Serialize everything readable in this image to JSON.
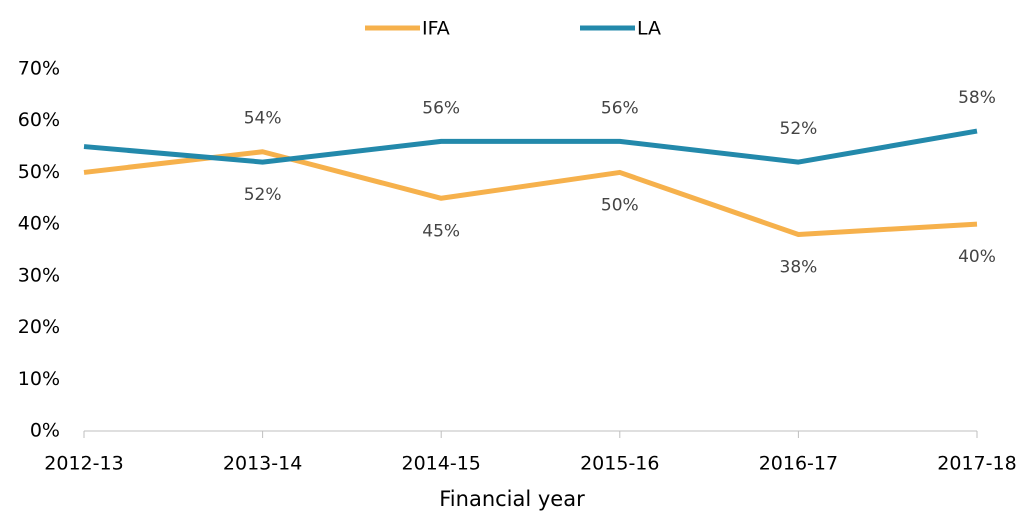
{
  "chart_data": {
    "type": "line",
    "x_label": "Financial year",
    "categories": [
      "2012-13",
      "2013-14",
      "2014-15",
      "2015-16",
      "2016-17",
      "2017-18"
    ],
    "series": [
      {
        "name": "IFA",
        "color": "#f6b14c",
        "values": [
          50,
          54,
          45,
          50,
          38,
          40
        ],
        "value_labels": [
          null,
          "54%",
          "45%",
          "50%",
          "38%",
          "40%"
        ]
      },
      {
        "name": "LA",
        "color": "#2389ab",
        "values": [
          55,
          52,
          56,
          56,
          52,
          58
        ],
        "value_labels": [
          null,
          "52%",
          "56%",
          "56%",
          "52%",
          "58%"
        ]
      }
    ],
    "ylim": [
      0,
      70
    ],
    "yticks": [
      {
        "value": 0,
        "label": "0%"
      },
      {
        "value": 10,
        "label": "10%"
      },
      {
        "value": 20,
        "label": "20%"
      },
      {
        "value": 30,
        "label": "30%"
      },
      {
        "value": 40,
        "label": "40%"
      },
      {
        "value": 50,
        "label": "50%"
      },
      {
        "value": 60,
        "label": "60%"
      },
      {
        "value": 70,
        "label": "70%"
      }
    ],
    "grid": false,
    "legend": "top"
  }
}
